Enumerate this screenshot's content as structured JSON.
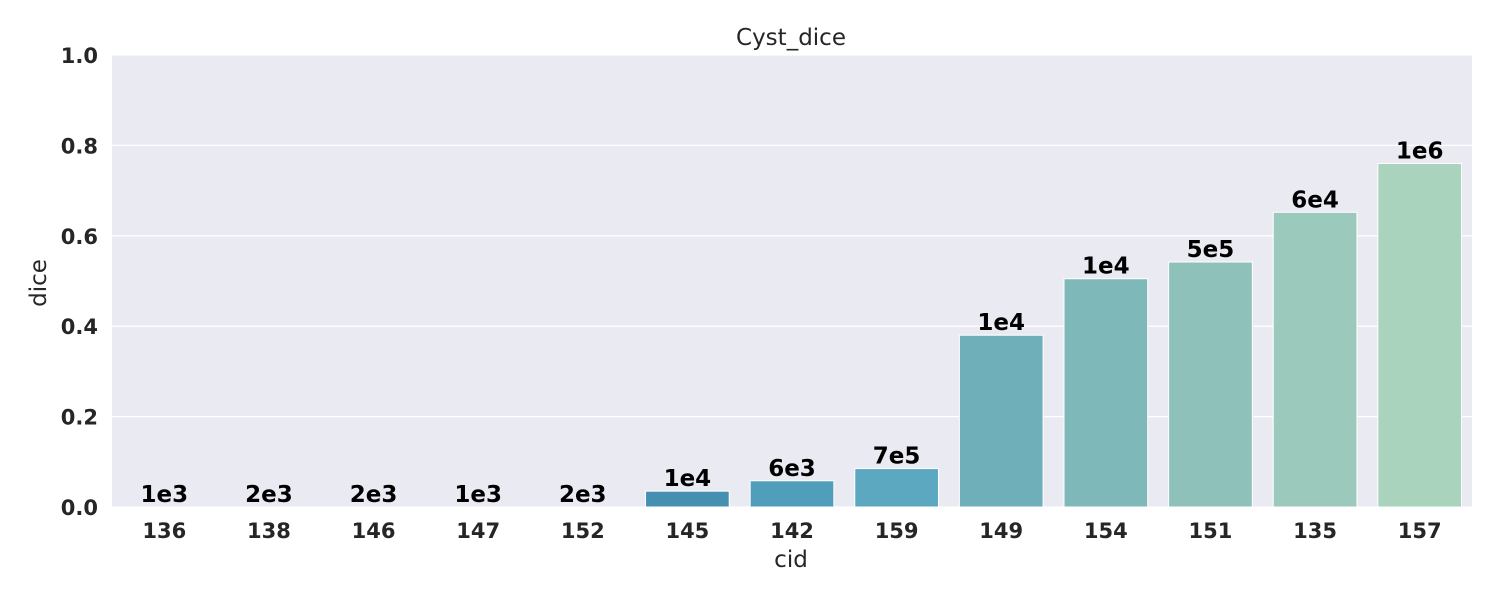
{
  "chart_data": {
    "type": "bar",
    "title": "Cyst_dice",
    "xlabel": "cid",
    "ylabel": "dice",
    "ylim": [
      0,
      1.0
    ],
    "yticks": [
      "0.0",
      "0.2",
      "0.4",
      "0.6",
      "0.8",
      "1.0"
    ],
    "grid": true,
    "categories": [
      "136",
      "138",
      "146",
      "147",
      "152",
      "145",
      "142",
      "159",
      "149",
      "154",
      "151",
      "135",
      "157"
    ],
    "values": [
      0.0,
      0.0,
      0.0,
      0.0,
      0.0,
      0.035,
      0.058,
      0.085,
      0.38,
      0.505,
      0.542,
      0.652,
      0.76
    ],
    "data_labels": [
      "1e3",
      "2e3",
      "2e3",
      "1e3",
      "2e3",
      "1e4",
      "6e3",
      "7e5",
      "1e4",
      "1e4",
      "5e5",
      "6e4",
      "1e6"
    ],
    "colors": [
      "#2b6f92",
      "#2d7497",
      "#30799c",
      "#337fa2",
      "#3a88a9",
      "#4590b1",
      "#519eba",
      "#5ba8c0",
      "#6eafb9",
      "#7fb8b9",
      "#8dc1ba",
      "#9bc9bb",
      "#a9d3bc"
    ],
    "background": "#eaeaf2"
  }
}
